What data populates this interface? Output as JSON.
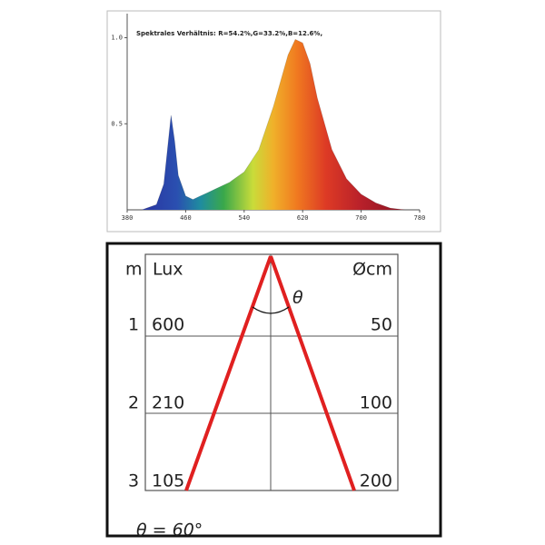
{
  "chart_data": {
    "type": "area",
    "title": "Spektrales Verhältnis:  R=54.2%,G=33.2%,B=12.6%,",
    "x": [
      380,
      400,
      420,
      430,
      435,
      440,
      445,
      450,
      460,
      470,
      480,
      490,
      500,
      520,
      540,
      560,
      580,
      600,
      610,
      620,
      630,
      640,
      660,
      680,
      700,
      720,
      740,
      760,
      780
    ],
    "values": [
      0,
      0,
      0.03,
      0.15,
      0.35,
      0.55,
      0.4,
      0.2,
      0.08,
      0.06,
      0.08,
      0.1,
      0.12,
      0.16,
      0.22,
      0.35,
      0.6,
      0.9,
      0.99,
      0.97,
      0.85,
      0.65,
      0.35,
      0.18,
      0.09,
      0.04,
      0.01,
      0,
      0
    ],
    "xlim": [
      380,
      780
    ],
    "xticks": [
      380,
      460,
      540,
      620,
      700,
      780
    ],
    "ylim": [
      0,
      1.14
    ],
    "yticks": [
      0.5,
      {
        "value": 1,
        "label": "1.0"
      }
    ]
  },
  "diagram": {
    "column_headers": [
      "m",
      "Lux",
      "Øcm"
    ],
    "rows": [
      [
        "1",
        "600",
        "50"
      ],
      [
        "2",
        "210",
        "100"
      ],
      [
        "3",
        "105",
        "200"
      ]
    ],
    "angle_label": "θ",
    "caption": "θ = 60°"
  }
}
